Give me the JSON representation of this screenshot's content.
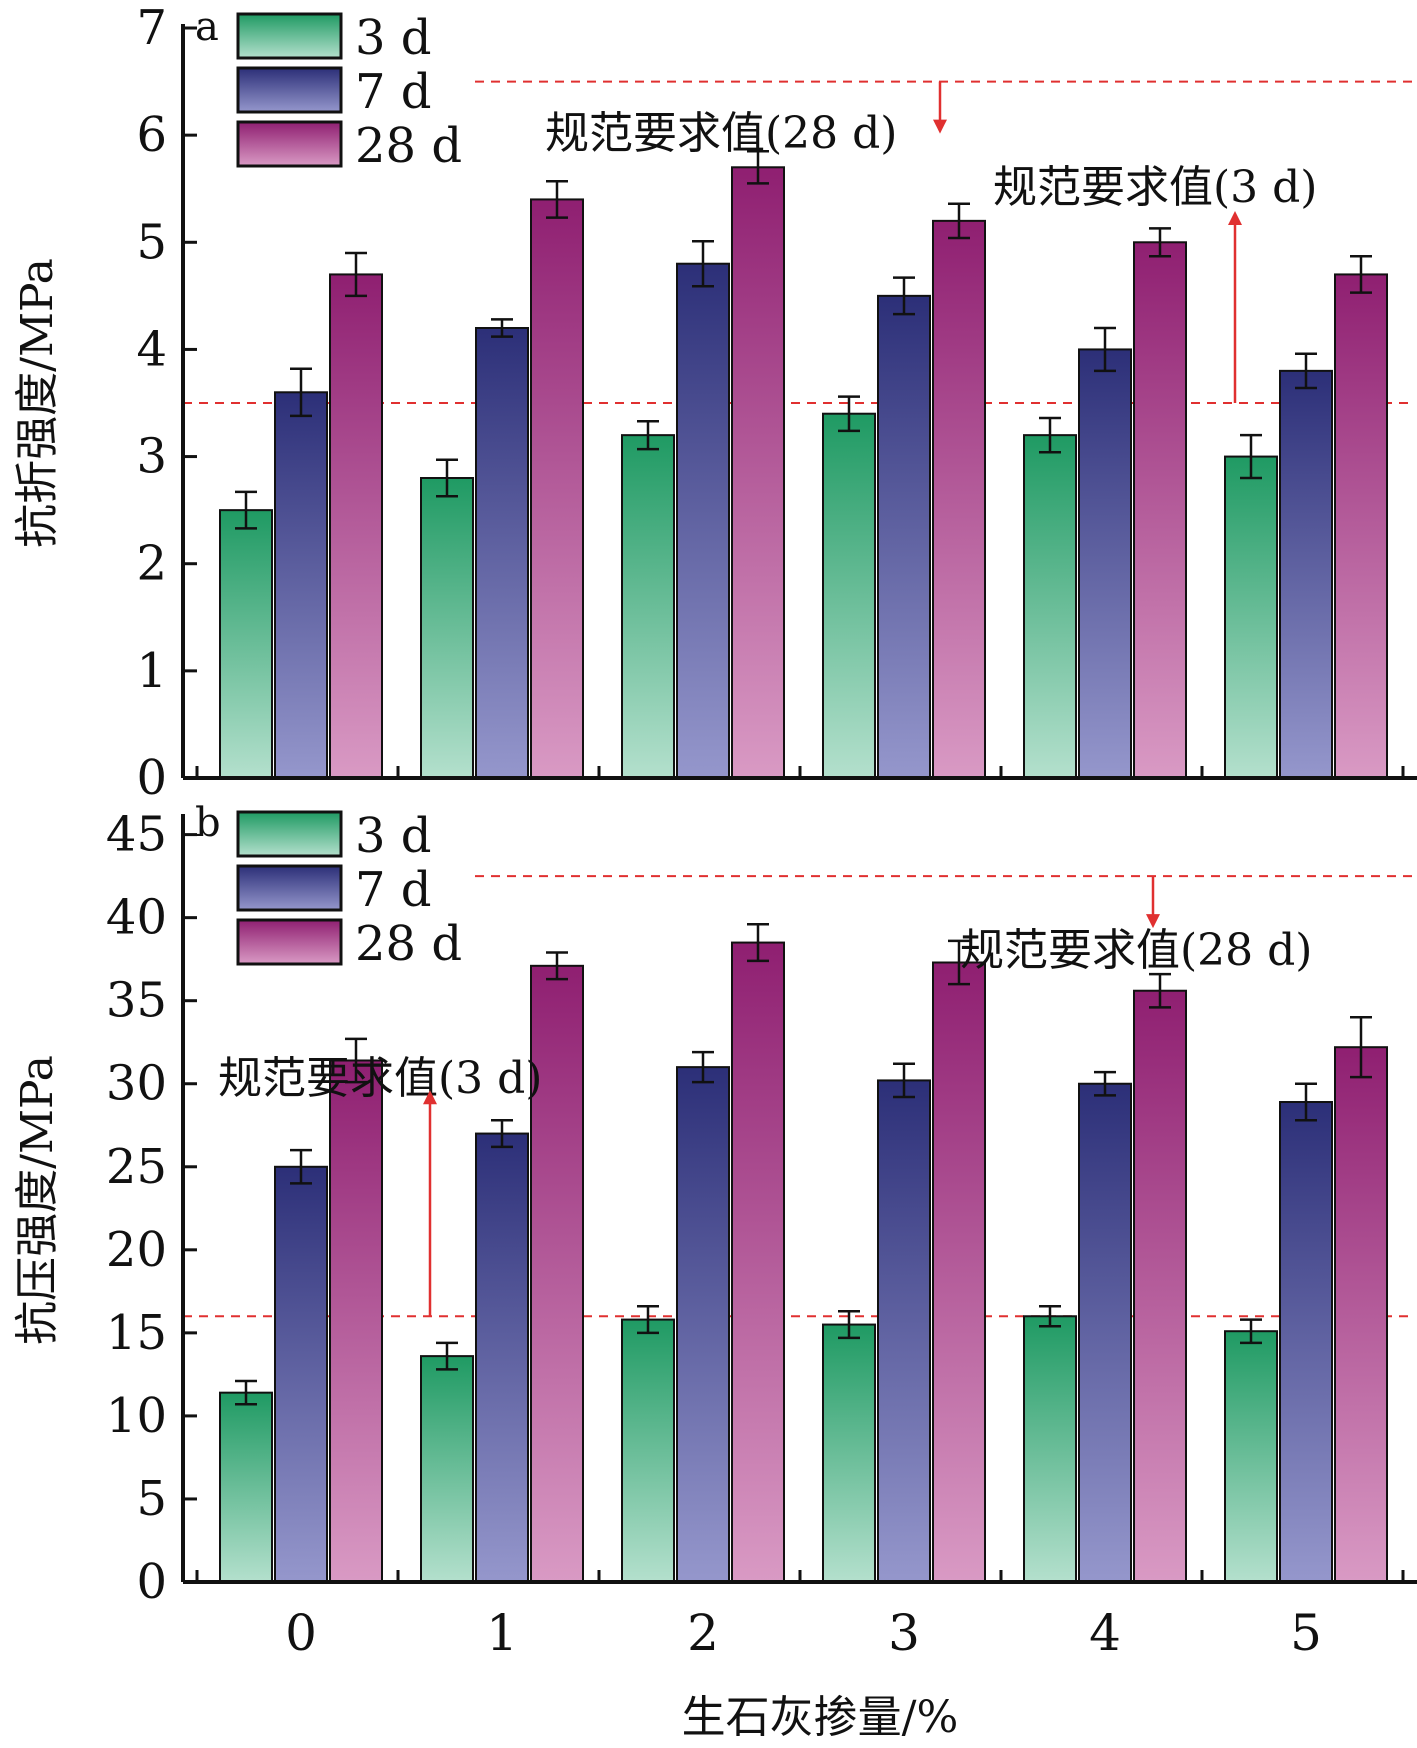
{
  "chart_data": [
    {
      "id": "a",
      "type": "bar",
      "panel_label": "a",
      "ylabel": "抗折强度/MPa",
      "ylim": [
        0,
        7
      ],
      "yticks": [
        0,
        1,
        2,
        3,
        4,
        5,
        6,
        7
      ],
      "categories": [
        "0",
        "1",
        "2",
        "3",
        "4",
        "5"
      ],
      "series": [
        {
          "name": "3 d",
          "values": [
            2.5,
            2.8,
            3.2,
            3.4,
            3.2,
            3.0
          ],
          "errors": [
            0.17,
            0.17,
            0.13,
            0.16,
            0.16,
            0.2
          ]
        },
        {
          "name": "7 d",
          "values": [
            3.6,
            4.2,
            4.8,
            4.5,
            4.0,
            3.8
          ],
          "errors": [
            0.22,
            0.08,
            0.21,
            0.17,
            0.2,
            0.16
          ]
        },
        {
          "name": "28 d",
          "values": [
            4.7,
            5.4,
            5.7,
            5.2,
            5.0,
            4.7
          ],
          "errors": [
            0.2,
            0.17,
            0.15,
            0.16,
            0.13,
            0.17
          ]
        }
      ],
      "reference_lines": [
        {
          "label": "规范要求值(28 d)",
          "value": 6.5
        },
        {
          "label": "规范要求值(3 d)",
          "value": 3.5
        }
      ]
    },
    {
      "id": "b",
      "type": "bar",
      "panel_label": "b",
      "ylabel": "抗压强度/MPa",
      "ylim": [
        0,
        46
      ],
      "yticks": [
        0,
        5,
        10,
        15,
        20,
        25,
        30,
        35,
        40,
        45
      ],
      "categories": [
        "0",
        "1",
        "2",
        "3",
        "4",
        "5"
      ],
      "series": [
        {
          "name": "3 d",
          "values": [
            11.4,
            13.6,
            15.8,
            15.5,
            16.0,
            15.1
          ],
          "errors": [
            0.7,
            0.8,
            0.8,
            0.8,
            0.6,
            0.7
          ]
        },
        {
          "name": "7 d",
          "values": [
            25.0,
            27.0,
            31.0,
            30.2,
            30.0,
            28.9
          ],
          "errors": [
            1.0,
            0.8,
            0.9,
            1.0,
            0.7,
            1.1
          ]
        },
        {
          "name": "28 d",
          "values": [
            31.4,
            37.1,
            38.5,
            37.3,
            35.6,
            32.2
          ],
          "errors": [
            1.3,
            0.8,
            1.1,
            1.3,
            1.0,
            1.8
          ]
        }
      ],
      "reference_lines": [
        {
          "label": "规范要求值(28 d)",
          "value": 42.5
        },
        {
          "label": "规范要求值(3 d)",
          "value": 16.0
        }
      ]
    }
  ],
  "xlabel": "生石灰掺量/%",
  "colors": {
    "s3d_top": "#1f9a63",
    "s3d_bottom": "#b4e0cd",
    "s7d_top": "#2c2f78",
    "s7d_bottom": "#9597cc",
    "s28d_top": "#8f1f71",
    "s28d_bottom": "#d99ac4",
    "reference": "#e03030",
    "axis": "#111111"
  }
}
